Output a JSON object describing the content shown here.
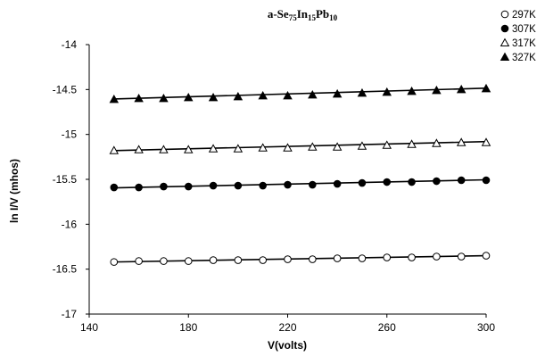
{
  "chart_data": {
    "type": "scatter",
    "title": {
      "base": "a-Se",
      "parts": [
        {
          "text": "a-Se",
          "sub": false
        },
        {
          "text": "75",
          "sub": true
        },
        {
          "text": "In",
          "sub": false
        },
        {
          "text": "15",
          "sub": true
        },
        {
          "text": "Pb",
          "sub": false
        },
        {
          "text": "10",
          "sub": true
        }
      ]
    },
    "xlabel": "V(volts)",
    "ylabel": "ln I/V (mhos)",
    "xlim": [
      140,
      300
    ],
    "ylim": [
      -17,
      -14
    ],
    "x_ticks": [
      140,
      180,
      220,
      260,
      300
    ],
    "y_ticks": [
      -14,
      -14.5,
      -15,
      -15.5,
      -16,
      -16.5,
      -17
    ],
    "x_tick_labels": [
      "140",
      "180",
      "220",
      "260",
      "300"
    ],
    "y_tick_labels": [
      "-14",
      "-14.5",
      "-15",
      "-15.5",
      "-16",
      "-16.5",
      "-17"
    ],
    "grid": false,
    "legend_position": "top-right",
    "x": [
      150,
      160,
      170,
      180,
      190,
      200,
      210,
      220,
      230,
      240,
      250,
      260,
      270,
      280,
      290,
      300
    ],
    "series": [
      {
        "name": "297K",
        "marker": "circle-open",
        "values": [
          -16.42,
          -16.41,
          -16.41,
          -16.41,
          -16.4,
          -16.4,
          -16.4,
          -16.39,
          -16.39,
          -16.38,
          -16.38,
          -16.37,
          -16.37,
          -16.36,
          -16.36,
          -16.35
        ],
        "fit": [
          -16.42,
          -16.35
        ]
      },
      {
        "name": "307K",
        "marker": "circle-filled",
        "values": [
          -15.59,
          -15.59,
          -15.58,
          -15.58,
          -15.57,
          -15.57,
          -15.57,
          -15.56,
          -15.56,
          -15.55,
          -15.54,
          -15.53,
          -15.53,
          -15.52,
          -15.51,
          -15.51
        ],
        "fit": [
          -15.595,
          -15.505
        ]
      },
      {
        "name": "317K",
        "marker": "triangle-open",
        "values": [
          -15.18,
          -15.17,
          -15.17,
          -15.17,
          -15.16,
          -15.16,
          -15.15,
          -15.15,
          -15.14,
          -15.14,
          -15.13,
          -15.12,
          -15.11,
          -15.1,
          -15.09,
          -15.09
        ],
        "fit": [
          -15.18,
          -15.08
        ]
      },
      {
        "name": "327K",
        "marker": "triangle-filled",
        "values": [
          -14.61,
          -14.6,
          -14.6,
          -14.59,
          -14.59,
          -14.58,
          -14.57,
          -14.57,
          -14.56,
          -14.55,
          -14.54,
          -14.53,
          -14.52,
          -14.51,
          -14.5,
          -14.49
        ],
        "fit": [
          -14.605,
          -14.485
        ]
      }
    ],
    "colors": {
      "markers": "#000000",
      "lines": "#000000",
      "axes": "#000000"
    }
  }
}
